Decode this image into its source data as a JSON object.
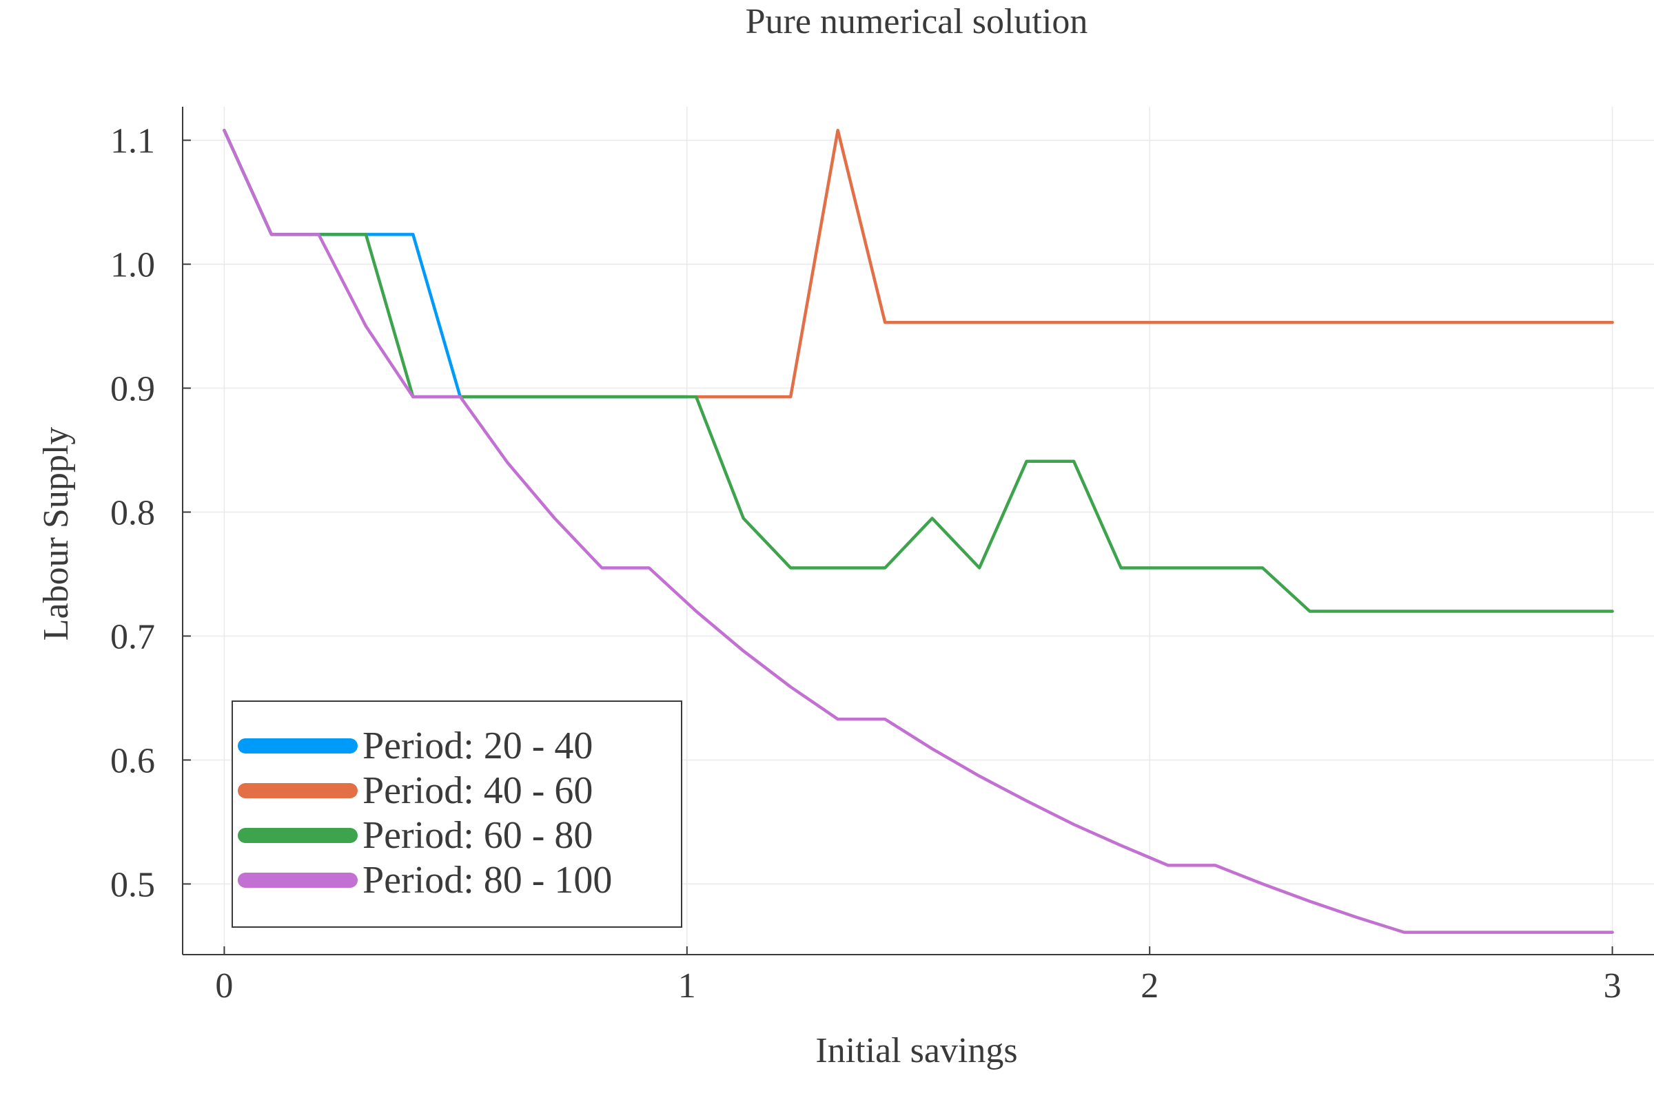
{
  "chart_data": {
    "type": "line",
    "title": "Pure numerical solution",
    "xlabel": "Initial savings",
    "ylabel": "Labour Supply",
    "xlim": [
      -0.09,
      3.09
    ],
    "ylim": [
      0.443,
      1.127
    ],
    "xticks": [
      0,
      1,
      2,
      3
    ],
    "xtick_labels": [
      "0",
      "1",
      "2",
      "3"
    ],
    "yticks": [
      0.5,
      0.6,
      0.7,
      0.8,
      0.9,
      1.0,
      1.1
    ],
    "ytick_labels": [
      "0.5",
      "0.6",
      "0.7",
      "0.8",
      "0.9",
      "1.0",
      "1.1"
    ],
    "grid": true,
    "legend_position": "bottom-left",
    "series": [
      {
        "name": "Period: 20 - 40",
        "color": "#009af9",
        "x": [
          0,
          0.102,
          0.204,
          0.306,
          0.408,
          0.51,
          1.0
        ],
        "y": [
          1.108,
          1.024,
          1.024,
          1.024,
          1.024,
          0.893,
          0.893
        ]
      },
      {
        "name": "Period: 40 - 60",
        "color": "#e26f46",
        "x": [
          1.02,
          1.122,
          1.224,
          1.326,
          1.428,
          3.0
        ],
        "y": [
          0.893,
          0.893,
          0.893,
          1.108,
          0.953,
          0.953
        ]
      },
      {
        "name": "Period: 60 - 80",
        "color": "#3da44d",
        "x": [
          0,
          0.102,
          0.204,
          0.306,
          0.408,
          0.51,
          1.02,
          1.122,
          1.224,
          1.326,
          1.428,
          1.53,
          1.632,
          1.734,
          1.836,
          1.938,
          2.04,
          2.142,
          2.244,
          2.346,
          3.0
        ],
        "y": [
          1.108,
          1.024,
          1.024,
          1.024,
          0.893,
          0.893,
          0.893,
          0.795,
          0.755,
          0.755,
          0.755,
          0.795,
          0.755,
          0.841,
          0.841,
          0.755,
          0.755,
          0.755,
          0.755,
          0.72,
          0.72
        ]
      },
      {
        "name": "Period: 80 - 100",
        "color": "#c271d2",
        "x": [
          0,
          0.102,
          0.204,
          0.306,
          0.408,
          0.51,
          0.612,
          0.714,
          0.816,
          0.918,
          1.02,
          1.122,
          1.224,
          1.326,
          1.428,
          1.53,
          1.632,
          1.734,
          1.836,
          1.938,
          2.04,
          2.142,
          2.244,
          2.346,
          2.448,
          2.55,
          2.652,
          3.0
        ],
        "y": [
          1.108,
          1.024,
          1.024,
          0.95,
          0.893,
          0.893,
          0.84,
          0.795,
          0.755,
          0.755,
          0.72,
          0.688,
          0.659,
          0.633,
          0.633,
          0.609,
          0.587,
          0.567,
          0.548,
          0.531,
          0.515,
          0.515,
          0.5,
          0.486,
          0.473,
          0.461,
          0.461,
          0.461
        ]
      }
    ]
  }
}
